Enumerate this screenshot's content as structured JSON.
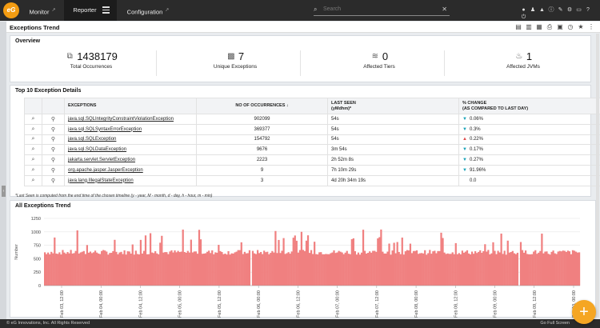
{
  "brand": {
    "logo_text": "eG",
    "accent": "#f39c12"
  },
  "nav": {
    "tabs": [
      {
        "label": "Monitor"
      },
      {
        "label": "Reporter"
      },
      {
        "label": "Configuration"
      }
    ],
    "search_placeholder": "Search",
    "icons": [
      "user-icon",
      "group-icon",
      "alarm-icon",
      "info-icon",
      "tools-icon",
      "settings-icon",
      "monitor-icon",
      "help-icon",
      "power-icon"
    ]
  },
  "page": {
    "title": "Exceptions Trend",
    "toolbar_icons": [
      "pdf-icon",
      "csv-icon",
      "excel-icon",
      "print-icon",
      "calendar-icon",
      "clock-icon",
      "favorite-icon",
      "more-icon"
    ]
  },
  "overview": {
    "title": "Overview",
    "items": [
      {
        "value": "1438179",
        "label": "Total Occurrences",
        "icon": "occurrences-icon"
      },
      {
        "value": "7",
        "label": "Unique Exceptions",
        "icon": "grid-icon"
      },
      {
        "value": "0",
        "label": "Affected Tiers",
        "icon": "tiers-icon"
      },
      {
        "value": "1",
        "label": "Affected JVMs",
        "icon": "jvm-icon"
      }
    ]
  },
  "top10": {
    "title": "Top 10 Exception Details",
    "headers": {
      "exceptions": "EXCEPTIONS",
      "occurrences": "NO OF OCCURRENCES ↓",
      "last_seen": "LAST SEEN",
      "last_seen_unit": "(yMdhm)*",
      "change": "% CHANGE",
      "change_sub": "(AS COMPARED TO LAST DAY)"
    },
    "rows": [
      {
        "name": "java.sql.SQLIntegrityConstraintViolationException",
        "occurrences": "902099",
        "last_seen": "54s",
        "change": "0.06%",
        "trend": "down"
      },
      {
        "name": "java.sql.SQLSyntaxErrorException",
        "occurrences": "369377",
        "last_seen": "54s",
        "change": "0.3%",
        "trend": "down"
      },
      {
        "name": "java.sql.SQLException",
        "occurrences": "154792",
        "last_seen": "54s",
        "change": "0.22%",
        "trend": "up"
      },
      {
        "name": "java.sql.SQLDataException",
        "occurrences": "9676",
        "last_seen": "3m 54s",
        "change": "0.17%",
        "trend": "down"
      },
      {
        "name": "jakarta.servlet.ServletException",
        "occurrences": "2223",
        "last_seen": "2h 52m 8s",
        "change": "0.27%",
        "trend": "down"
      },
      {
        "name": "org.apache.jasper.JasperException",
        "occurrences": "9",
        "last_seen": "7h 10m 29s",
        "change": "91.96%",
        "trend": "down"
      },
      {
        "name": "java.lang.IllegalStateException",
        "occurrences": "3",
        "last_seen": "4d 20h 34m 19s",
        "change": "0.0",
        "trend": "none"
      }
    ],
    "footnote": "*Last Seen is computed from the end time of the chosen timeline (y - year, M - month, d - day, h - hour, m - min)"
  },
  "trend": {
    "title": "All Exceptions Trend",
    "color_bar": "#f08080",
    "chart_data": {
      "type": "bar",
      "title": "All Exceptions Trend",
      "ylabel": "Number",
      "xlabel": "",
      "ylim": [
        0,
        1250
      ],
      "yticks": [
        0,
        250,
        500,
        750,
        1000,
        1250
      ],
      "x_ticks": [
        "Feb 03, 12:00",
        "Feb 04, 00:00",
        "Feb 04, 12:00",
        "Feb 05, 00:00",
        "Feb 05, 12:00",
        "Feb 06, 00:00",
        "Feb 06, 12:00",
        "Feb 07, 00:00",
        "Feb 07, 12:00",
        "Feb 08, 00:00",
        "Feb 08, 12:00",
        "Feb 09, 00:00",
        "Feb 09, 12:00",
        "Feb 10, 00:00"
      ],
      "baseline_level": 620,
      "spike_level": 1050,
      "grid": true
    }
  },
  "footer": {
    "copyright": "© eG Innovations, Inc. All Rights Reserved",
    "fullscreen": "Go Full Screen"
  }
}
